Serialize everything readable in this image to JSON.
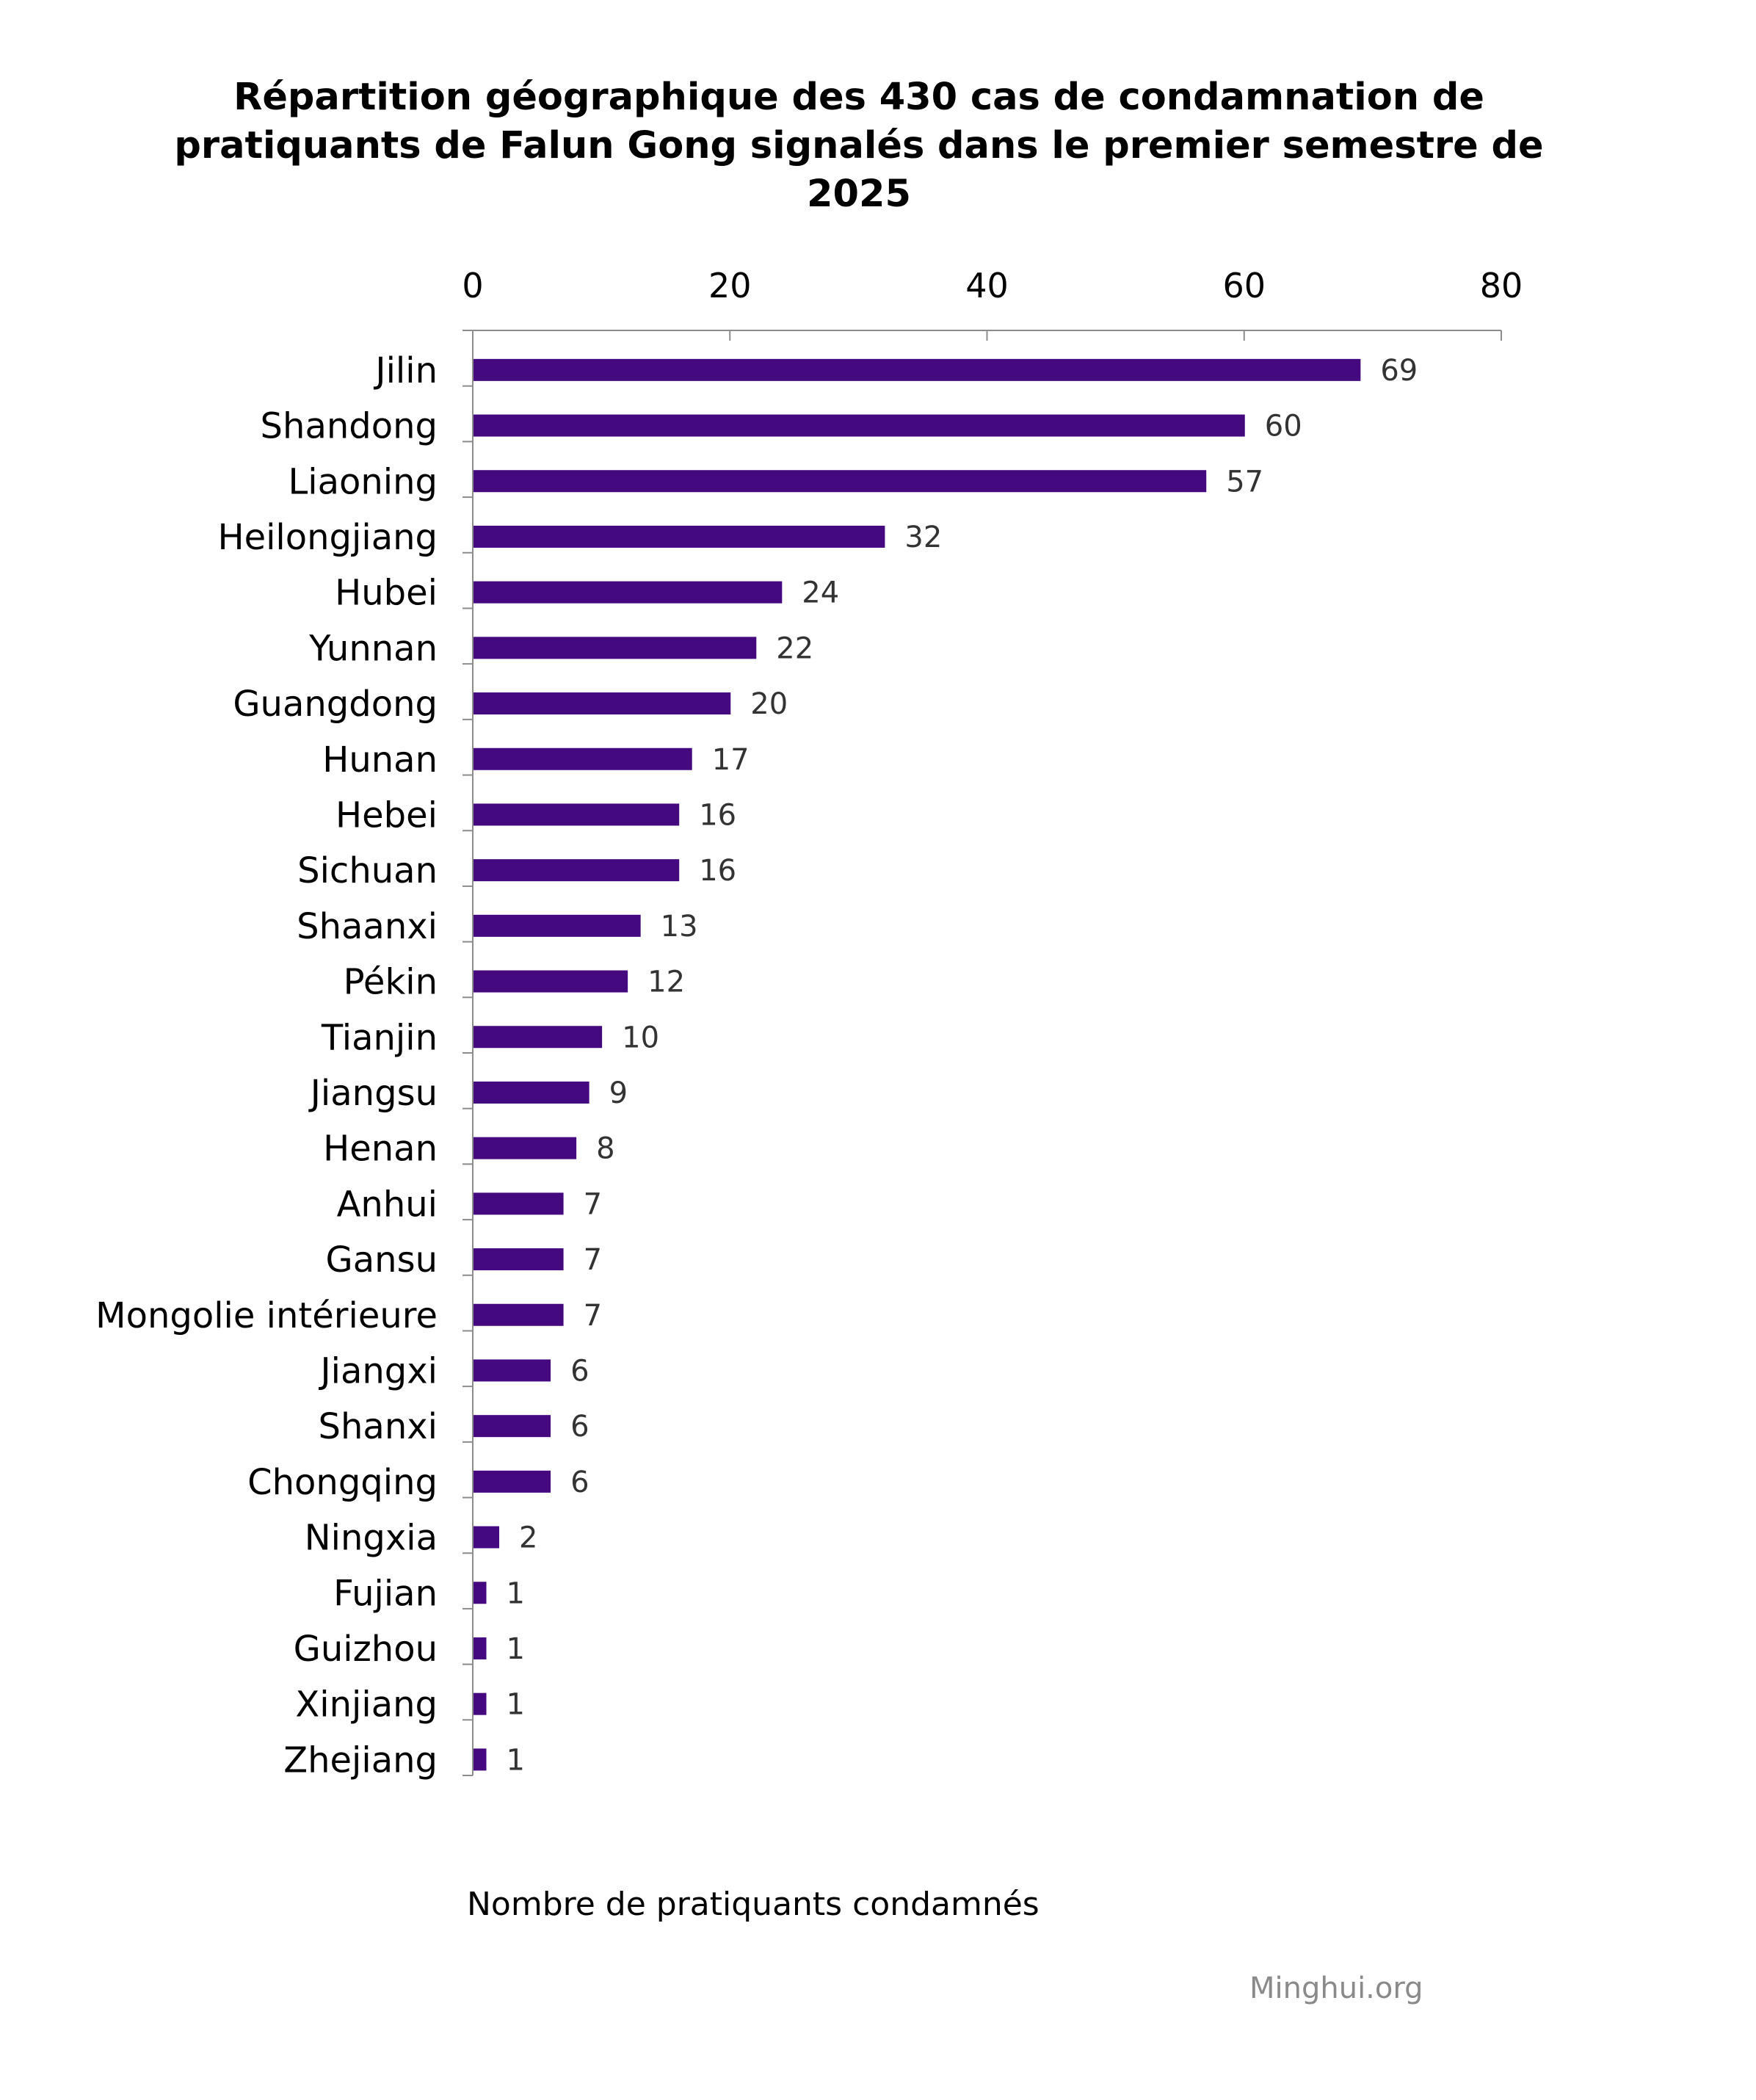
{
  "chart_data": {
    "type": "bar",
    "orientation": "horizontal",
    "title": "Répartition géographique des 430 cas de condamnation de pratiquants de Falun Gong signalés dans le premier semestre de 2025",
    "xlabel": "Nombre de pratiquants condamnés",
    "xlim": [
      0,
      80
    ],
    "xticks": [
      0,
      20,
      40,
      60,
      80
    ],
    "axis_position": "top",
    "grid": false,
    "bar_color": "#44087f",
    "categories": [
      "Jilin",
      "Shandong",
      "Liaoning",
      "Heilongjiang",
      "Hubei",
      "Yunnan",
      "Guangdong",
      "Hunan",
      "Hebei",
      "Sichuan",
      "Shaanxi",
      "Pékin",
      "Tianjin",
      "Jiangsu",
      "Henan",
      "Anhui",
      "Gansu",
      "Mongolie intérieure",
      "Jiangxi",
      "Shanxi",
      "Chongqing",
      "Ningxia",
      "Fujian",
      "Guizhou",
      "Xinjiang",
      "Zhejiang"
    ],
    "values": [
      69,
      60,
      57,
      32,
      24,
      22,
      20,
      17,
      16,
      16,
      13,
      12,
      10,
      9,
      8,
      7,
      7,
      7,
      6,
      6,
      6,
      2,
      1,
      1,
      1,
      1
    ]
  },
  "source": "Minghui.org"
}
